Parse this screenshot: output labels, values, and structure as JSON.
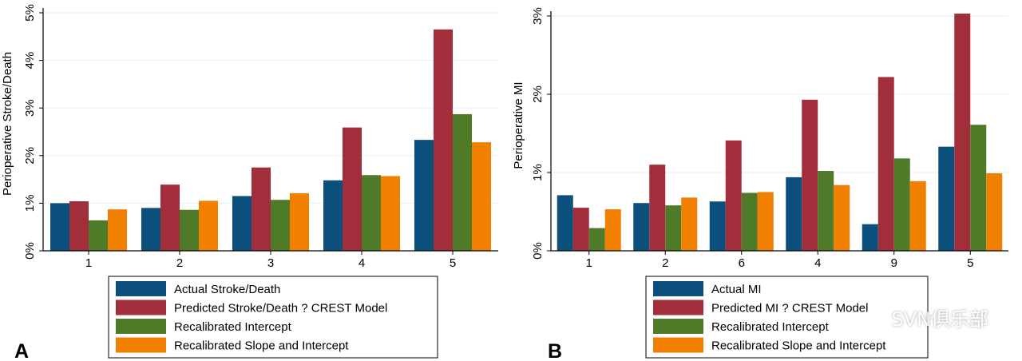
{
  "colors": {
    "actual": "#0b4f7c",
    "predicted": "#a22d3b",
    "intercept": "#4f7b28",
    "slope": "#f28000",
    "grid": "#e6eef2",
    "axis": "#000000"
  },
  "watermark": "SVN俱乐部",
  "chart_data": [
    {
      "type": "bar",
      "panel_label": "A",
      "ylabel": "Perioperative Stroke/Death",
      "ylim": [
        0,
        5
      ],
      "yticks": [
        "0%",
        "1%",
        "2%",
        "3%",
        "4%",
        "5%"
      ],
      "categories": [
        "1",
        "2",
        "3",
        "4",
        "5"
      ],
      "series": [
        {
          "name": "Actual Stroke/Death",
          "color_key": "actual",
          "values": [
            1.0,
            0.9,
            1.15,
            1.48,
            2.33
          ]
        },
        {
          "name": "Predicted Stroke/Death ? CREST Model",
          "color_key": "predicted",
          "values": [
            1.04,
            1.39,
            1.75,
            2.59,
            4.65
          ]
        },
        {
          "name": "Recalibrated Intercept",
          "color_key": "intercept",
          "values": [
            0.64,
            0.86,
            1.07,
            1.59,
            2.87
          ]
        },
        {
          "name": "Recalibrated Slope and Intercept",
          "color_key": "slope",
          "values": [
            0.87,
            1.05,
            1.21,
            1.57,
            2.28
          ]
        }
      ]
    },
    {
      "type": "bar",
      "panel_label": "B",
      "ylabel": "Perioperative MI",
      "ylim": [
        0,
        3
      ],
      "yticks": [
        "0%",
        "1%",
        "2%",
        "3%"
      ],
      "categories": [
        "1",
        "2",
        "6",
        "4",
        "9",
        "5"
      ],
      "series": [
        {
          "name": "Actual MI",
          "color_key": "actual",
          "values": [
            0.71,
            0.61,
            0.63,
            0.94,
            0.34,
            1.33
          ]
        },
        {
          "name": "Predicted MI ? CREST Model",
          "color_key": "predicted",
          "values": [
            0.55,
            1.1,
            1.41,
            1.93,
            2.22,
            3.03
          ]
        },
        {
          "name": "Recalibrated Intercept",
          "color_key": "intercept",
          "values": [
            0.29,
            0.58,
            0.74,
            1.02,
            1.18,
            1.61
          ]
        },
        {
          "name": "Recalibrated Slope and Intercept",
          "color_key": "slope",
          "values": [
            0.53,
            0.68,
            0.75,
            0.84,
            0.89,
            0.99
          ]
        }
      ]
    }
  ]
}
